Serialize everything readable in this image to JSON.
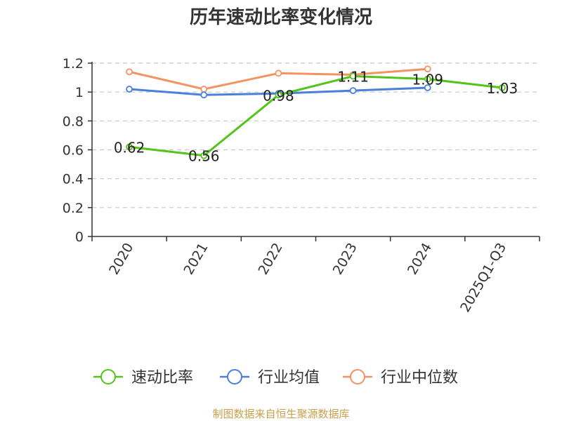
{
  "chart_data": {
    "type": "line",
    "title": "历年速动比率变化情况",
    "categories": [
      "2020",
      "2021",
      "2022",
      "2023",
      "2024",
      "2025Q1-Q3"
    ],
    "ylim": [
      0,
      1.2
    ],
    "yticks": [
      0,
      0.2,
      0.4,
      0.6,
      0.8,
      1,
      1.2
    ],
    "grid": true,
    "legend_position": "bottom",
    "series": [
      {
        "name": "速动比率",
        "color": "#52c41a",
        "values": [
          0.62,
          0.56,
          0.98,
          1.11,
          1.09,
          1.03
        ],
        "show_labels": true
      },
      {
        "name": "行业均值",
        "color": "#4a7fdc",
        "values": [
          1.02,
          0.98,
          0.99,
          1.01,
          1.03,
          null
        ],
        "show_labels": false
      },
      {
        "name": "行业中位数",
        "color": "#f59262",
        "values": [
          1.14,
          1.02,
          1.13,
          1.12,
          1.16,
          null
        ],
        "show_labels": false
      }
    ]
  },
  "footer": {
    "source": "制图数据来自恒生聚源数据库"
  }
}
